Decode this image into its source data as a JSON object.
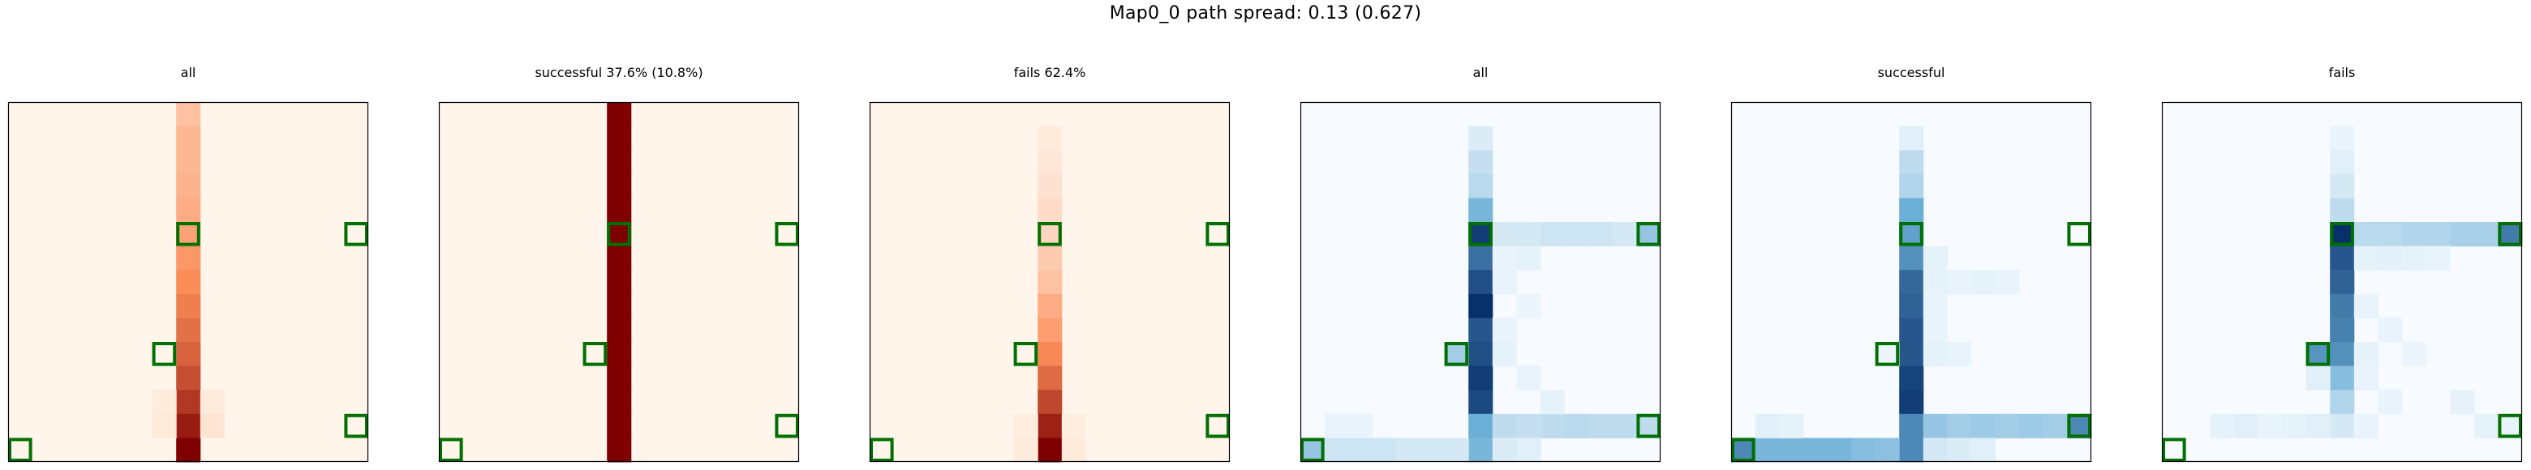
{
  "figure": {
    "suptitle": "Map0_0 path spread: 0.13 (0.627)"
  },
  "colors": {
    "reds_low": "#fff5eb",
    "reds_mid": "#fc8d59",
    "reds_high": "#7f0000",
    "blues_low": "#f7fbff",
    "blues_mid": "#6baed6",
    "blues_high": "#08306b",
    "marker": "#007000"
  },
  "chart_data": [
    {
      "type": "heatmap",
      "title": "all",
      "colormap": "Reds",
      "grid_size": [
        15,
        15
      ],
      "axes": "hidden",
      "cells": [
        [
          7,
          0,
          0.25
        ],
        [
          7,
          1,
          0.3
        ],
        [
          7,
          2,
          0.3
        ],
        [
          7,
          3,
          0.32
        ],
        [
          7,
          4,
          0.35
        ],
        [
          7,
          5,
          0.4
        ],
        [
          7,
          6,
          0.45
        ],
        [
          7,
          7,
          0.5
        ],
        [
          7,
          8,
          0.55
        ],
        [
          7,
          9,
          0.6
        ],
        [
          7,
          10,
          0.65
        ],
        [
          7,
          11,
          0.72
        ],
        [
          7,
          12,
          0.8
        ],
        [
          7,
          13,
          0.9
        ],
        [
          7,
          14,
          1.0
        ],
        [
          6,
          12,
          0.05
        ],
        [
          8,
          12,
          0.05
        ],
        [
          6,
          13,
          0.06
        ],
        [
          8,
          13,
          0.08
        ]
      ],
      "markers": [
        [
          7,
          5
        ],
        [
          14,
          5
        ],
        [
          6,
          10
        ],
        [
          0,
          14
        ],
        [
          14,
          13
        ]
      ]
    },
    {
      "type": "heatmap",
      "title": "successful 37.6% (10.8%)",
      "colormap": "Reds",
      "grid_size": [
        15,
        15
      ],
      "axes": "hidden",
      "cells": [
        [
          7,
          0,
          1
        ],
        [
          7,
          1,
          1
        ],
        [
          7,
          2,
          1
        ],
        [
          7,
          3,
          1
        ],
        [
          7,
          4,
          1
        ],
        [
          7,
          5,
          1
        ],
        [
          7,
          6,
          1
        ],
        [
          7,
          7,
          1
        ],
        [
          7,
          8,
          1
        ],
        [
          7,
          9,
          1
        ],
        [
          7,
          10,
          1
        ],
        [
          7,
          11,
          1
        ],
        [
          7,
          12,
          1
        ],
        [
          7,
          13,
          1
        ],
        [
          7,
          14,
          1
        ]
      ],
      "markers": [
        [
          7,
          5
        ],
        [
          14,
          5
        ],
        [
          6,
          10
        ],
        [
          0,
          14
        ],
        [
          14,
          13
        ]
      ]
    },
    {
      "type": "heatmap",
      "title": "fails 62.4%",
      "colormap": "Reds",
      "grid_size": [
        15,
        15
      ],
      "axes": "hidden",
      "cells": [
        [
          7,
          1,
          0.05
        ],
        [
          7,
          2,
          0.07
        ],
        [
          7,
          3,
          0.09
        ],
        [
          7,
          4,
          0.12
        ],
        [
          7,
          5,
          0.15
        ],
        [
          7,
          6,
          0.2
        ],
        [
          7,
          7,
          0.25
        ],
        [
          7,
          8,
          0.35
        ],
        [
          7,
          9,
          0.42
        ],
        [
          7,
          10,
          0.52
        ],
        [
          7,
          11,
          0.62
        ],
        [
          7,
          12,
          0.75
        ],
        [
          7,
          13,
          0.88
        ],
        [
          7,
          14,
          1.0
        ],
        [
          6,
          13,
          0.04
        ],
        [
          8,
          13,
          0.04
        ],
        [
          6,
          14,
          0.05
        ],
        [
          8,
          14,
          0.05
        ]
      ],
      "markers": [
        [
          7,
          5
        ],
        [
          14,
          5
        ],
        [
          6,
          10
        ],
        [
          0,
          14
        ],
        [
          14,
          13
        ]
      ]
    },
    {
      "type": "heatmap",
      "title": "all",
      "colormap": "Blues",
      "grid_size": [
        15,
        15
      ],
      "axes": "hidden",
      "cells": [
        [
          7,
          1,
          0.1
        ],
        [
          7,
          2,
          0.18
        ],
        [
          7,
          3,
          0.22
        ],
        [
          7,
          4,
          0.45
        ],
        [
          7,
          5,
          0.95
        ],
        [
          7,
          6,
          0.75
        ],
        [
          7,
          7,
          0.88
        ],
        [
          7,
          8,
          1.0
        ],
        [
          7,
          9,
          0.85
        ],
        [
          7,
          10,
          0.88
        ],
        [
          7,
          11,
          0.95
        ],
        [
          7,
          12,
          0.9
        ],
        [
          7,
          13,
          0.5
        ],
        [
          7,
          14,
          0.45
        ],
        [
          8,
          5,
          0.12
        ],
        [
          9,
          5,
          0.12
        ],
        [
          10,
          5,
          0.15
        ],
        [
          11,
          5,
          0.15
        ],
        [
          12,
          5,
          0.15
        ],
        [
          13,
          5,
          0.12
        ],
        [
          14,
          5,
          0.35
        ],
        [
          8,
          13,
          0.2
        ],
        [
          9,
          13,
          0.18
        ],
        [
          10,
          13,
          0.2
        ],
        [
          11,
          13,
          0.22
        ],
        [
          12,
          13,
          0.2
        ],
        [
          13,
          13,
          0.2
        ],
        [
          14,
          13,
          0.2
        ],
        [
          0,
          14,
          0.35
        ],
        [
          1,
          14,
          0.15
        ],
        [
          2,
          14,
          0.15
        ],
        [
          3,
          14,
          0.15
        ],
        [
          4,
          14,
          0.12
        ],
        [
          5,
          14,
          0.12
        ],
        [
          6,
          14,
          0.12
        ],
        [
          8,
          14,
          0.1
        ],
        [
          9,
          14,
          0.08
        ],
        [
          8,
          6,
          0.05
        ],
        [
          9,
          6,
          0.06
        ],
        [
          8,
          9,
          0.05
        ],
        [
          8,
          10,
          0.06
        ],
        [
          9,
          11,
          0.05
        ],
        [
          10,
          12,
          0.06
        ],
        [
          1,
          13,
          0.05
        ],
        [
          2,
          13,
          0.05
        ],
        [
          6,
          10,
          0.3
        ],
        [
          8,
          7,
          0.05
        ],
        [
          9,
          8,
          0.04
        ]
      ],
      "markers": [
        [
          7,
          5
        ],
        [
          14,
          5
        ],
        [
          6,
          10
        ],
        [
          0,
          14
        ],
        [
          14,
          13
        ]
      ]
    },
    {
      "type": "heatmap",
      "title": "successful",
      "colormap": "Blues",
      "grid_size": [
        15,
        15
      ],
      "axes": "hidden",
      "cells": [
        [
          7,
          1,
          0.08
        ],
        [
          7,
          2,
          0.2
        ],
        [
          7,
          3,
          0.25
        ],
        [
          7,
          4,
          0.5
        ],
        [
          7,
          5,
          0.55
        ],
        [
          7,
          6,
          0.62
        ],
        [
          7,
          7,
          0.78
        ],
        [
          7,
          8,
          0.8
        ],
        [
          7,
          9,
          0.85
        ],
        [
          7,
          10,
          0.85
        ],
        [
          7,
          11,
          0.92
        ],
        [
          7,
          12,
          0.95
        ],
        [
          7,
          13,
          0.65
        ],
        [
          7,
          14,
          0.65
        ],
        [
          8,
          13,
          0.35
        ],
        [
          9,
          13,
          0.3
        ],
        [
          10,
          13,
          0.32
        ],
        [
          11,
          13,
          0.3
        ],
        [
          12,
          13,
          0.32
        ],
        [
          13,
          13,
          0.3
        ],
        [
          14,
          13,
          0.65
        ],
        [
          0,
          14,
          0.65
        ],
        [
          1,
          14,
          0.45
        ],
        [
          2,
          14,
          0.45
        ],
        [
          3,
          14,
          0.45
        ],
        [
          4,
          14,
          0.45
        ],
        [
          5,
          14,
          0.4
        ],
        [
          6,
          14,
          0.38
        ],
        [
          8,
          14,
          0.12
        ],
        [
          9,
          14,
          0.1
        ],
        [
          10,
          14,
          0.08
        ],
        [
          8,
          6,
          0.06
        ],
        [
          8,
          7,
          0.06
        ],
        [
          9,
          7,
          0.05
        ],
        [
          10,
          7,
          0.06
        ],
        [
          11,
          7,
          0.05
        ],
        [
          8,
          8,
          0.05
        ],
        [
          8,
          9,
          0.05
        ],
        [
          8,
          10,
          0.06
        ],
        [
          9,
          10,
          0.05
        ],
        [
          1,
          13,
          0.08
        ],
        [
          2,
          13,
          0.06
        ],
        [
          6,
          10,
          0.04
        ]
      ],
      "markers": [
        [
          7,
          5
        ],
        [
          14,
          5
        ],
        [
          6,
          10
        ],
        [
          0,
          14
        ],
        [
          14,
          13
        ]
      ]
    },
    {
      "type": "heatmap",
      "title": "fails",
      "colormap": "Blues",
      "grid_size": [
        15,
        15
      ],
      "axes": "hidden",
      "cells": [
        [
          7,
          1,
          0.05
        ],
        [
          7,
          2,
          0.08
        ],
        [
          7,
          3,
          0.12
        ],
        [
          7,
          4,
          0.2
        ],
        [
          7,
          5,
          1.0
        ],
        [
          7,
          6,
          0.85
        ],
        [
          7,
          7,
          0.8
        ],
        [
          7,
          8,
          0.7
        ],
        [
          7,
          9,
          0.68
        ],
        [
          7,
          10,
          0.62
        ],
        [
          7,
          11,
          0.4
        ],
        [
          7,
          12,
          0.25
        ],
        [
          7,
          13,
          0.12
        ],
        [
          8,
          5,
          0.22
        ],
        [
          9,
          5,
          0.22
        ],
        [
          10,
          5,
          0.25
        ],
        [
          11,
          5,
          0.25
        ],
        [
          12,
          5,
          0.28
        ],
        [
          13,
          5,
          0.28
        ],
        [
          14,
          5,
          0.7
        ],
        [
          6,
          10,
          0.6
        ],
        [
          8,
          6,
          0.06
        ],
        [
          9,
          6,
          0.07
        ],
        [
          10,
          6,
          0.06
        ],
        [
          11,
          6,
          0.05
        ],
        [
          8,
          8,
          0.05
        ],
        [
          9,
          9,
          0.05
        ],
        [
          8,
          10,
          0.06
        ],
        [
          10,
          10,
          0.04
        ],
        [
          8,
          11,
          0.05
        ],
        [
          9,
          12,
          0.05
        ],
        [
          2,
          13,
          0.06
        ],
        [
          3,
          13,
          0.08
        ],
        [
          4,
          13,
          0.05
        ],
        [
          5,
          13,
          0.06
        ],
        [
          6,
          13,
          0.08
        ],
        [
          8,
          13,
          0.05
        ],
        [
          12,
          12,
          0.06
        ],
        [
          13,
          13,
          0.06
        ],
        [
          14,
          13,
          0.05
        ],
        [
          6,
          11,
          0.08
        ]
      ],
      "markers": [
        [
          7,
          5
        ],
        [
          14,
          5
        ],
        [
          6,
          10
        ],
        [
          0,
          14
        ],
        [
          14,
          13
        ]
      ]
    }
  ]
}
